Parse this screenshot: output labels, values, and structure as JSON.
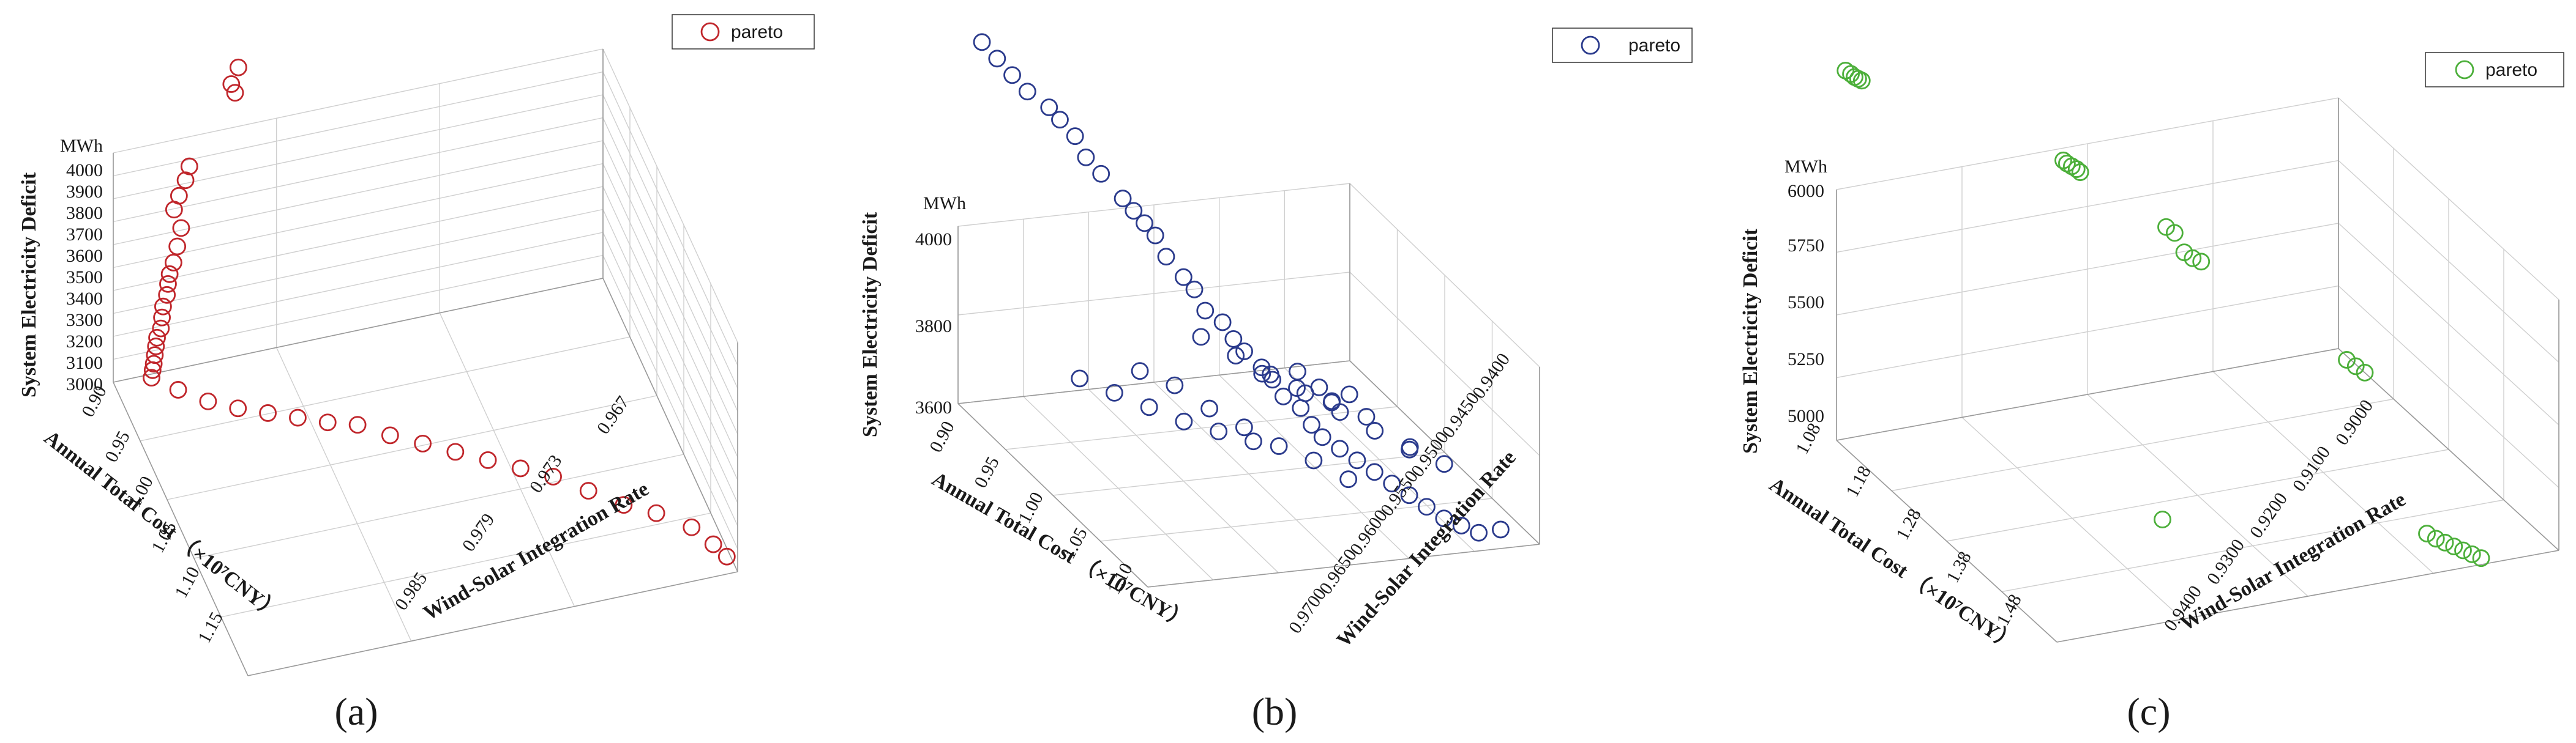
{
  "figure": {
    "panel_labels": [
      "(a)",
      "(b)",
      "(c)"
    ]
  },
  "chart_data": [
    {
      "type": "scatter3d",
      "panel": "(a)",
      "zlabel": "System Electricity Deficit",
      "zunit": "MWh",
      "xlabel": "Annual Total Cost （×10⁷CNY）",
      "ylabel": "Wind-Solar Integration Rate",
      "legend": "pareto",
      "color": "#c0262b",
      "x_ticks": [
        "0.90",
        "0.95",
        "1.00",
        "1.05",
        "1.10",
        "1.15"
      ],
      "y_ticks": [
        "0.967",
        "0.973",
        "0.979",
        "0.985"
      ],
      "z_ticks": [
        "3000",
        "3100",
        "3200",
        "3300",
        "3400",
        "3500",
        "3600",
        "3700",
        "3800",
        "3900",
        "4000"
      ],
      "xlim": [
        0.9,
        1.15
      ],
      "ylim": [
        0.967,
        0.985
      ],
      "zlim": [
        3000,
        4000
      ],
      "points": [
        [
          0.905,
          0.9715,
          4285
        ],
        [
          0.907,
          0.9712,
          4230
        ],
        [
          0.909,
          0.9713,
          4200
        ],
        [
          0.915,
          0.9695,
          3955
        ],
        [
          0.918,
          0.9693,
          3915
        ],
        [
          0.921,
          0.969,
          3870
        ],
        [
          0.922,
          0.9688,
          3820
        ],
        [
          0.925,
          0.969,
          3750
        ],
        [
          0.928,
          0.9688,
          3690
        ],
        [
          0.931,
          0.9686,
          3640
        ],
        [
          0.934,
          0.9684,
          3610
        ],
        [
          0.936,
          0.9683,
          3580
        ],
        [
          0.939,
          0.9682,
          3550
        ],
        [
          0.942,
          0.968,
          3520
        ],
        [
          0.945,
          0.9679,
          3490
        ],
        [
          0.948,
          0.9678,
          3460
        ],
        [
          0.951,
          0.9676,
          3440
        ],
        [
          0.954,
          0.9675,
          3420
        ],
        [
          0.957,
          0.9674,
          3400
        ],
        [
          0.96,
          0.9673,
          3380
        ],
        [
          0.963,
          0.9672,
          3370
        ],
        [
          0.966,
          0.9671,
          3355
        ],
        [
          0.97,
          0.968,
          3300
        ],
        [
          0.975,
          0.969,
          3250
        ],
        [
          0.98,
          0.97,
          3220
        ],
        [
          0.985,
          0.971,
          3200
        ],
        [
          0.99,
          0.972,
          3180
        ],
        [
          0.995,
          0.973,
          3160
        ],
        [
          1.0,
          0.974,
          3150
        ],
        [
          1.01,
          0.975,
          3130
        ],
        [
          1.02,
          0.976,
          3120
        ],
        [
          1.03,
          0.977,
          3110
        ],
        [
          1.04,
          0.978,
          3100
        ],
        [
          1.05,
          0.979,
          3090
        ],
        [
          1.06,
          0.98,
          3080
        ],
        [
          1.075,
          0.981,
          3070
        ],
        [
          1.09,
          0.982,
          3060
        ],
        [
          1.1,
          0.983,
          3050
        ],
        [
          1.115,
          0.984,
          3040
        ],
        [
          1.13,
          0.9845,
          3030
        ],
        [
          1.14,
          0.9848,
          3020
        ]
      ]
    },
    {
      "type": "scatter3d",
      "panel": "(b)",
      "zlabel": "System Electricity Deficit",
      "zunit": "MWh",
      "xlabel": "Annual Total Cost （×10⁷CNY）",
      "ylabel": "Wind-Solar Integration Rate",
      "legend": "pareto",
      "color": "#2a3a8c",
      "x_ticks": [
        "0.90",
        "0.95",
        "1.00",
        "1.05",
        "1.10"
      ],
      "y_ticks": [
        "0.9400",
        "0.9450",
        "0.9500",
        "0.9550",
        "0.9600",
        "0.9650",
        "0.9700"
      ],
      "z_ticks": [
        "3600",
        "3800",
        "4000"
      ],
      "xlim": [
        0.9,
        1.12
      ],
      "ylim": [
        0.94,
        0.97
      ],
      "zlim": [
        3600,
        4000
      ],
      "points": [
        [
          0.905,
          0.9415,
          4420
        ],
        [
          0.915,
          0.942,
          4400
        ],
        [
          0.925,
          0.9425,
          4380
        ],
        [
          0.935,
          0.943,
          4360
        ],
        [
          0.945,
          0.944,
          4340
        ],
        [
          0.95,
          0.9445,
          4320
        ],
        [
          0.96,
          0.945,
          4300
        ],
        [
          0.965,
          0.9455,
          4260
        ],
        [
          0.975,
          0.946,
          4240
        ],
        [
          0.985,
          0.947,
          4200
        ],
        [
          0.99,
          0.9475,
          4180
        ],
        [
          0.995,
          0.948,
          4160
        ],
        [
          1.0,
          0.9485,
          4140
        ],
        [
          1.005,
          0.949,
          4100
        ],
        [
          1.01,
          0.95,
          4060
        ],
        [
          1.015,
          0.9505,
          4040
        ],
        [
          1.02,
          0.951,
          4000
        ],
        [
          1.025,
          0.952,
          3980
        ],
        [
          1.03,
          0.9525,
          3950
        ],
        [
          1.035,
          0.953,
          3930
        ],
        [
          1.04,
          0.954,
          3900
        ],
        [
          1.045,
          0.9545,
          3880
        ],
        [
          1.05,
          0.955,
          3850
        ],
        [
          1.055,
          0.956,
          3830
        ],
        [
          1.06,
          0.9565,
          3800
        ],
        [
          1.065,
          0.957,
          3780
        ],
        [
          1.07,
          0.958,
          3760
        ],
        [
          1.075,
          0.959,
          3740
        ],
        [
          1.08,
          0.96,
          3720
        ],
        [
          1.085,
          0.961,
          3700
        ],
        [
          1.09,
          0.962,
          3680
        ],
        [
          1.095,
          0.963,
          3660
        ],
        [
          1.1,
          0.964,
          3640
        ],
        [
          1.105,
          0.965,
          3630
        ],
        [
          1.11,
          0.966,
          3620
        ],
        [
          0.935,
          0.947,
          3700
        ],
        [
          0.945,
          0.949,
          3680
        ],
        [
          0.955,
          0.951,
          3660
        ],
        [
          0.965,
          0.953,
          3640
        ],
        [
          0.975,
          0.955,
          3630
        ],
        [
          0.985,
          0.957,
          3620
        ],
        [
          1.02,
          0.946,
          3880
        ],
        [
          1.03,
          0.948,
          3860
        ],
        [
          1.04,
          0.95,
          3820
        ],
        [
          1.05,
          0.952,
          3790
        ],
        [
          1.06,
          0.954,
          3760
        ],
        [
          1.07,
          0.956,
          3740
        ],
        [
          1.08,
          0.958,
          3710
        ],
        [
          1.0,
          0.952,
          3900
        ],
        [
          1.01,
          0.954,
          3870
        ],
        [
          1.02,
          0.956,
          3840
        ],
        [
          1.03,
          0.958,
          3810
        ],
        [
          1.04,
          0.96,
          3780
        ],
        [
          1.05,
          0.962,
          3750
        ],
        [
          1.06,
          0.964,
          3720
        ],
        [
          1.07,
          0.966,
          3700
        ],
        [
          0.98,
          0.958,
          3760
        ],
        [
          0.99,
          0.96,
          3740
        ],
        [
          1.0,
          0.962,
          3720
        ],
        [
          1.01,
          0.964,
          3700
        ],
        [
          0.915,
          0.965,
          3620
        ],
        [
          0.925,
          0.966,
          3600
        ],
        [
          1.0,
          0.968,
          3600
        ],
        [
          1.09,
          0.969,
          3580
        ],
        [
          0.96,
          0.966,
          3650
        ],
        [
          0.97,
          0.964,
          3660
        ]
      ]
    },
    {
      "type": "scatter3d",
      "panel": "(c)",
      "zlabel": "System Electricity Deficit",
      "zunit": "MWh",
      "xlabel": "Annual Total Cost （×10⁷CNY）",
      "ylabel": "Wind-Solar Integration Rate",
      "legend": "pareto",
      "color": "#4caf3a",
      "x_ticks": [
        "1.08",
        "1.18",
        "1.28",
        "1.38",
        "1.48"
      ],
      "y_ticks": [
        "0.9000",
        "0.9100",
        "0.9200",
        "0.9300",
        "0.9400"
      ],
      "z_ticks": [
        "5000",
        "5250",
        "5500",
        "5750",
        "6000"
      ],
      "xlim": [
        1.08,
        1.48
      ],
      "ylim": [
        0.9,
        0.94
      ],
      "zlim": [
        5000,
        6000
      ],
      "points": [
        [
          1.085,
          0.9005,
          6480
        ],
        [
          1.088,
          0.9008,
          6470
        ],
        [
          1.09,
          0.901,
          6460
        ],
        [
          1.092,
          0.9012,
          6455
        ],
        [
          1.094,
          0.9014,
          6450
        ],
        [
          1.15,
          0.915,
          6120
        ],
        [
          1.152,
          0.9152,
          6110
        ],
        [
          1.154,
          0.9155,
          6100
        ],
        [
          1.156,
          0.9158,
          6090
        ],
        [
          1.158,
          0.916,
          6080
        ],
        [
          1.2,
          0.921,
          5900
        ],
        [
          1.204,
          0.9215,
          5880
        ],
        [
          1.21,
          0.922,
          5810
        ],
        [
          1.214,
          0.9225,
          5790
        ],
        [
          1.218,
          0.923,
          5780
        ],
        [
          1.3,
          0.931,
          5480
        ],
        [
          1.305,
          0.9315,
          5460
        ],
        [
          1.31,
          0.932,
          5440
        ],
        [
          1.33,
          0.915,
          5050
        ],
        [
          1.4,
          0.933,
          4970
        ],
        [
          1.405,
          0.9335,
          4955
        ],
        [
          1.41,
          0.934,
          4945
        ],
        [
          1.415,
          0.9345,
          4935
        ],
        [
          1.42,
          0.935,
          4925
        ],
        [
          1.425,
          0.9355,
          4915
        ],
        [
          1.43,
          0.936,
          4905
        ]
      ]
    }
  ]
}
